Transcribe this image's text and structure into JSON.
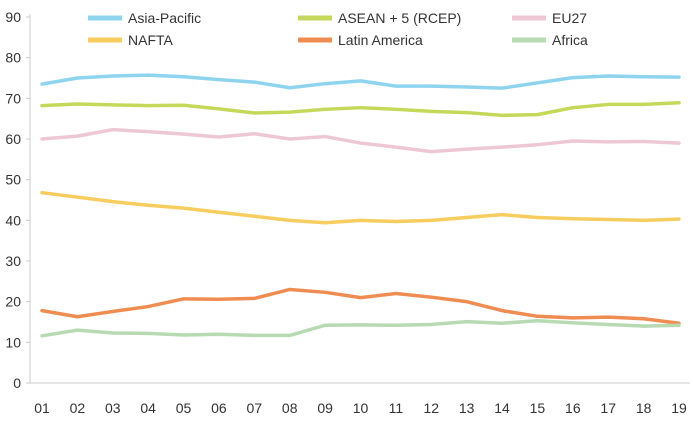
{
  "chart_data": {
    "type": "line",
    "title": "",
    "xlabel": "",
    "ylabel": "",
    "x": [
      "01",
      "02",
      "03",
      "04",
      "05",
      "06",
      "07",
      "08",
      "09",
      "10",
      "11",
      "12",
      "13",
      "14",
      "15",
      "16",
      "17",
      "18",
      "19"
    ],
    "ylim": [
      0,
      90
    ],
    "yticks": [
      0,
      10,
      20,
      30,
      40,
      50,
      60,
      70,
      80,
      90
    ],
    "grid": false,
    "legend": "top",
    "series": [
      {
        "name": "Asia-Pacific",
        "color": "#8fd4ef",
        "values": [
          73.5,
          75,
          75.5,
          75.7,
          75.3,
          74.6,
          74,
          72.6,
          73.6,
          74.3,
          73,
          73,
          72.8,
          72.5,
          73.8,
          75.1,
          75.5,
          75.3,
          75.2
        ]
      },
      {
        "name": "ASEAN + 5 (RCEP)",
        "color": "#c5d85a",
        "values": [
          68.2,
          68.6,
          68.4,
          68.2,
          68.3,
          67.4,
          66.4,
          66.6,
          67.3,
          67.7,
          67.3,
          66.8,
          66.5,
          65.8,
          66,
          67.7,
          68.5,
          68.5,
          68.9
        ]
      },
      {
        "name": "EU27",
        "color": "#edc8d4",
        "values": [
          60,
          60.7,
          62.3,
          61.8,
          61.2,
          60.5,
          61.3,
          60,
          60.6,
          59,
          58,
          56.9,
          57.5,
          58,
          58.6,
          59.5,
          59.3,
          59.4,
          59
        ]
      },
      {
        "name": "NAFTA",
        "color": "#f6cd5e",
        "values": [
          46.8,
          45.7,
          44.6,
          43.7,
          43,
          42,
          41,
          40,
          39.4,
          40,
          39.7,
          40,
          40.7,
          41.4,
          40.7,
          40.4,
          40.2,
          40,
          40.3
        ]
      },
      {
        "name": "Latin America",
        "color": "#ef8c52",
        "values": [
          17.8,
          16.3,
          17.6,
          18.8,
          20.7,
          20.6,
          20.8,
          23,
          22.3,
          21,
          22,
          21.1,
          20,
          17.8,
          16.4,
          16,
          16.2,
          15.8,
          14.7
        ]
      },
      {
        "name": "Africa",
        "color": "#b7dab3",
        "values": [
          11.6,
          13,
          12.3,
          12.2,
          11.8,
          12,
          11.7,
          11.7,
          14.2,
          14.3,
          14.2,
          14.4,
          15.1,
          14.7,
          15.3,
          14.8,
          14.4,
          14,
          14.2
        ]
      }
    ]
  }
}
